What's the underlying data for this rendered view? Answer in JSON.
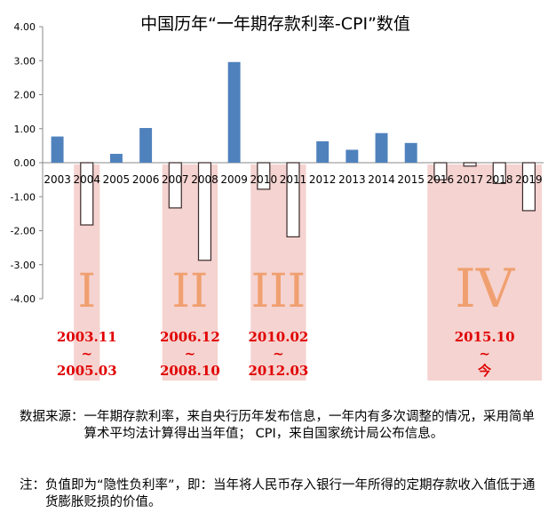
{
  "chart_data": {
    "type": "bar",
    "title": "中国历年“一年期存款利率-CPI”数值",
    "xlabel": "",
    "ylabel": "",
    "ylim": [
      -4,
      4
    ],
    "yticks": [
      "4.00",
      "3.00",
      "2.00",
      "1.00",
      "0.00",
      "-1.00",
      "-2.00",
      "-3.00",
      "-4.00"
    ],
    "categories": [
      "2003",
      "2004",
      "2005",
      "2006",
      "2007",
      "2008",
      "2009",
      "2010",
      "2011",
      "2012",
      "2013",
      "2014",
      "2015",
      "2016",
      "2017",
      "2018",
      "2019"
    ],
    "values": [
      0.77,
      -1.83,
      0.26,
      1.02,
      -1.33,
      -2.87,
      2.96,
      -0.78,
      -2.18,
      0.63,
      0.38,
      0.87,
      0.58,
      -0.5,
      -0.1,
      -0.61,
      -1.41
    ],
    "colors": {
      "positive_fill": "#4f81bd",
      "negative_fill": "#ffffff",
      "negative_stroke": "#3b2a2a",
      "region_fill": "#f2c4c0",
      "roman_color": "#f0a070",
      "date_color": "#e00000"
    },
    "regions": [
      {
        "roman": "I",
        "start": "2003.11",
        "tilde": "~",
        "end": "2005.03",
        "from": "2004",
        "to": "2004"
      },
      {
        "roman": "II",
        "start": "2006.12",
        "tilde": "~",
        "end": "2008.10",
        "from": "2007",
        "to": "2008"
      },
      {
        "roman": "III",
        "start": "2010.02",
        "tilde": "~",
        "end": "2012.03",
        "from": "2010",
        "to": "2011"
      },
      {
        "roman": "IV",
        "start": "2015.10",
        "tilde": "~",
        "end": "今",
        "from": "2016",
        "to": "2019"
      }
    ]
  },
  "notes": {
    "source_label": "数据来源：",
    "source_text": "一年期存款利率，来自央行历年发布信息，一年内有多次调整的情况，采用简单算术平均法计算得出当年值； CPI，来自国家统计局公布信息。",
    "note_label": "注：",
    "note_text": "负值即为“隐性负利率”，即：当年将人民币存入银行一年所得的定期存款收入值低于通货膨胀贬损的价值。"
  }
}
